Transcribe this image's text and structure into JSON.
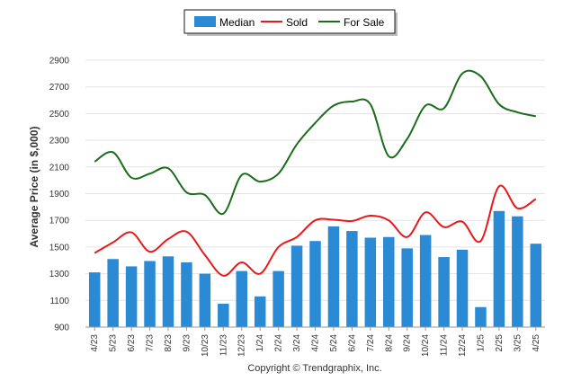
{
  "chart_data": {
    "type": "bar",
    "ylabel": "Average Price (in $,000)",
    "xlabel": "",
    "ylim": [
      900,
      2900
    ],
    "yticks": [
      900,
      1100,
      1300,
      1500,
      1700,
      1900,
      2100,
      2300,
      2500,
      2700,
      2900
    ],
    "grid": true,
    "legend_position": "top",
    "categories": [
      "4/23",
      "5/23",
      "6/23",
      "7/23",
      "8/23",
      "9/23",
      "10/23",
      "11/23",
      "12/23",
      "1/24",
      "2/24",
      "3/24",
      "4/24",
      "5/24",
      "6/24",
      "7/24",
      "8/24",
      "9/24",
      "10/24",
      "11/24",
      "12/24",
      "1/25",
      "2/25",
      "3/25",
      "4/25"
    ],
    "series": [
      {
        "name": "Median",
        "kind": "bar",
        "color": "#2a8ad4",
        "values": [
          1310,
          1410,
          1355,
          1395,
          1430,
          1385,
          1300,
          1075,
          1320,
          1130,
          1320,
          1510,
          1545,
          1655,
          1620,
          1570,
          1575,
          1490,
          1590,
          1425,
          1480,
          1050,
          1770,
          1730,
          1525
        ]
      },
      {
        "name": "Sold",
        "kind": "line",
        "color": "#e8191b",
        "values": [
          1455,
          1535,
          1610,
          1465,
          1560,
          1615,
          1440,
          1285,
          1385,
          1300,
          1500,
          1575,
          1700,
          1705,
          1695,
          1735,
          1700,
          1575,
          1760,
          1650,
          1690,
          1545,
          1955,
          1790,
          1860
        ]
      },
      {
        "name": "For Sale",
        "kind": "line",
        "color": "#1a6d1a",
        "values": [
          2140,
          2210,
          2020,
          2050,
          2090,
          1910,
          1890,
          1750,
          2040,
          1990,
          2050,
          2270,
          2430,
          2560,
          2590,
          2570,
          2180,
          2310,
          2560,
          2540,
          2800,
          2780,
          2570,
          2510,
          2480
        ]
      }
    ],
    "annotations": [
      "Copyright © Trendgraphix, Inc."
    ]
  }
}
